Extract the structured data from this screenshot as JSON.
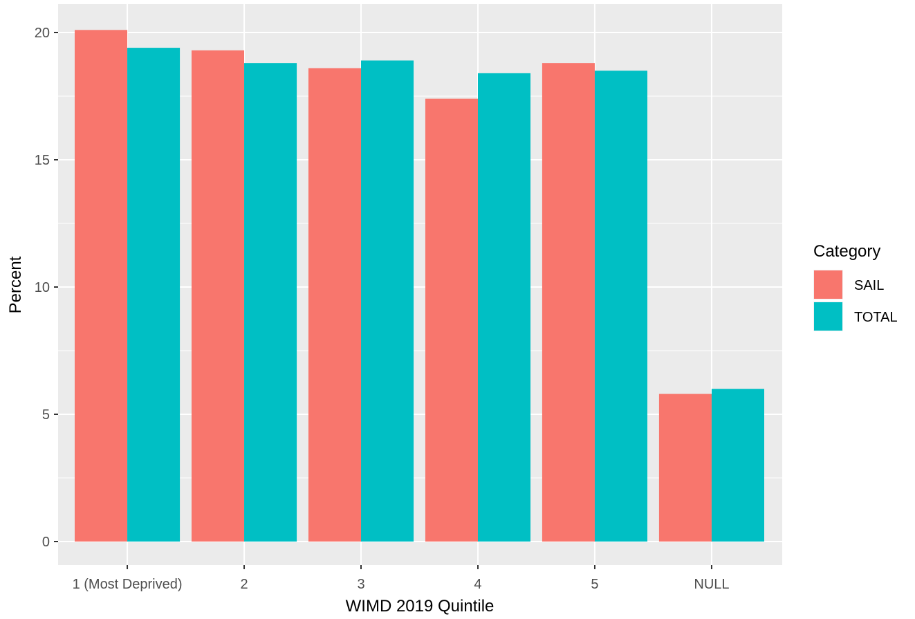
{
  "chart_data": {
    "type": "bar",
    "categories": [
      "1 (Most Deprived)",
      "2",
      "3",
      "4",
      "5",
      "NULL"
    ],
    "series": [
      {
        "name": "SAIL",
        "values": [
          20.1,
          19.3,
          18.6,
          17.4,
          18.8,
          5.8
        ],
        "color": "#F8766D"
      },
      {
        "name": "TOTAL",
        "values": [
          19.4,
          18.8,
          18.9,
          18.4,
          18.5,
          6.0
        ],
        "color": "#00BFC4"
      }
    ],
    "title": "",
    "xlabel": "WIMD 2019 Quintile",
    "ylabel": "Percent",
    "ylim": [
      0,
      21
    ],
    "y_ticks": [
      "0",
      "5",
      "10",
      "15",
      "20"
    ],
    "grid": true,
    "legend": {
      "title": "Category",
      "placement": "right"
    },
    "panel_color": "#EBEBEB",
    "grid_color": "#FFFFFF"
  }
}
